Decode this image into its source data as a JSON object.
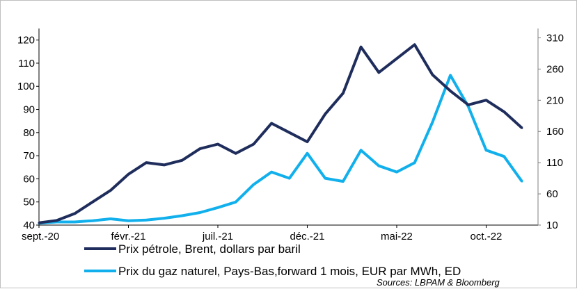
{
  "chart_data": {
    "type": "line",
    "x_labels": [
      "sept.-20",
      "févr.-21",
      "juil.-21",
      "déc.-21",
      "mai-22",
      "oct.-22"
    ],
    "x_label_dates": [
      "2020-09",
      "2021-02",
      "2021-07",
      "2021-12",
      "2022-05",
      "2022-10"
    ],
    "x_range": [
      "2020-09",
      "2022-12"
    ],
    "left_axis": {
      "range": [
        40,
        125
      ],
      "ticks": [
        40,
        50,
        60,
        70,
        80,
        90,
        100,
        110,
        120
      ]
    },
    "right_axis": {
      "range": [
        10,
        325
      ],
      "ticks": [
        10,
        60,
        110,
        160,
        210,
        260,
        310
      ]
    },
    "grid": false,
    "legend_position": "bottom",
    "source": "Sources: LBPAM & Bloomberg",
    "series": [
      {
        "name": "Prix pétrole, Brent, dollars par baril",
        "axis": "left",
        "color": "#1f2d5c",
        "points": [
          [
            "2020-09",
            41
          ],
          [
            "2020-10",
            42
          ],
          [
            "2020-11",
            45
          ],
          [
            "2020-12",
            50
          ],
          [
            "2021-01",
            55
          ],
          [
            "2021-02",
            62
          ],
          [
            "2021-03",
            67
          ],
          [
            "2021-04",
            66
          ],
          [
            "2021-05",
            68
          ],
          [
            "2021-06",
            73
          ],
          [
            "2021-07",
            75
          ],
          [
            "2021-08",
            71
          ],
          [
            "2021-09",
            75
          ],
          [
            "2021-10",
            84
          ],
          [
            "2021-11",
            80
          ],
          [
            "2021-12",
            76
          ],
          [
            "2022-01",
            88
          ],
          [
            "2022-02",
            97
          ],
          [
            "2022-03",
            117
          ],
          [
            "2022-04",
            106
          ],
          [
            "2022-05",
            112
          ],
          [
            "2022-06",
            118
          ],
          [
            "2022-07",
            105
          ],
          [
            "2022-08",
            98
          ],
          [
            "2022-09",
            92
          ],
          [
            "2022-10",
            94
          ],
          [
            "2022-11",
            89
          ],
          [
            "2022-12",
            82
          ]
        ]
      },
      {
        "name": "Prix du gaz naturel, Pays-Bas,forward 1 mois, EUR par MWh, ED",
        "axis": "right",
        "color": "#11b0ec",
        "points": [
          [
            "2020-09",
            13
          ],
          [
            "2020-10",
            15
          ],
          [
            "2020-11",
            15
          ],
          [
            "2020-12",
            17
          ],
          [
            "2021-01",
            20
          ],
          [
            "2021-02",
            17
          ],
          [
            "2021-03",
            18
          ],
          [
            "2021-04",
            21
          ],
          [
            "2021-05",
            25
          ],
          [
            "2021-06",
            30
          ],
          [
            "2021-07",
            38
          ],
          [
            "2021-08",
            47
          ],
          [
            "2021-09",
            75
          ],
          [
            "2021-10",
            95
          ],
          [
            "2021-11",
            85
          ],
          [
            "2021-12",
            125
          ],
          [
            "2022-01",
            85
          ],
          [
            "2022-02",
            80
          ],
          [
            "2022-03",
            130
          ],
          [
            "2022-04",
            105
          ],
          [
            "2022-05",
            95
          ],
          [
            "2022-06",
            110
          ],
          [
            "2022-07",
            175
          ],
          [
            "2022-08",
            250
          ],
          [
            "2022-09",
            200
          ],
          [
            "2022-10",
            130
          ],
          [
            "2022-11",
            120
          ],
          [
            "2022-12",
            80
          ]
        ]
      }
    ]
  }
}
